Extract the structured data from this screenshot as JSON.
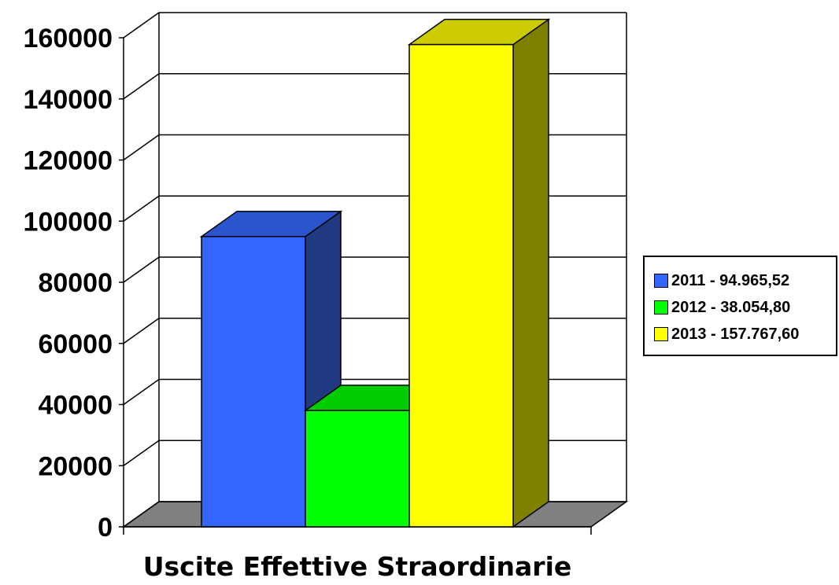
{
  "chart_data": {
    "type": "bar",
    "style": "3d",
    "xlabel": "Uscite Effettive Straordinarie",
    "ylim": [
      0,
      160000
    ],
    "yticks": [
      "0",
      "20000",
      "40000",
      "60000",
      "80000",
      "100000",
      "120000",
      "140000",
      "160000"
    ],
    "grid": true,
    "legend_position": "right",
    "series": [
      {
        "name": "2011 - 94.965,52",
        "value": 94965.52,
        "color": "#3366FF",
        "side_color": "#1F3A80",
        "top_color": "#2B55CC"
      },
      {
        "name": "2012 - 38.054,80",
        "value": 38054.8,
        "color": "#00FF00",
        "side_color": "#008000",
        "top_color": "#00CC00"
      },
      {
        "name": "2013 - 157.767,60",
        "value": 157767.6,
        "color": "#FFFF00",
        "side_color": "#808000",
        "top_color": "#CCCC00"
      }
    ],
    "floor_color": "#808080"
  }
}
